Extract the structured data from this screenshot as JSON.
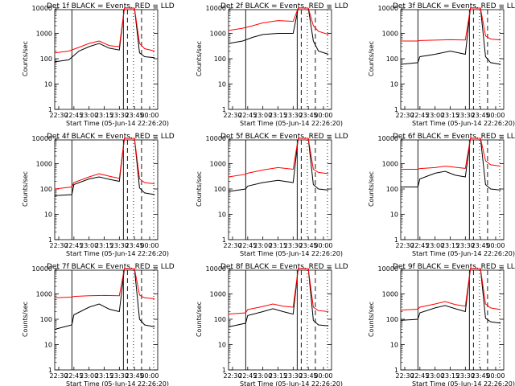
{
  "figure": {
    "ylabel": "Counts/sec",
    "xlabel_prefix": "Start Time",
    "start_time": "(05-Jun-14 22:26:20)",
    "x_ticks": [
      "22:30",
      "22:45",
      "23:00",
      "23:15",
      "23:30",
      "23:45",
      "00:00"
    ],
    "y_ticks": [
      "1",
      "10",
      "100",
      "1000",
      "10000"
    ],
    "colors": {
      "events": "#000000",
      "lld": "#ff0000"
    }
  },
  "chart_data": [
    {
      "type": "line",
      "title": "Det 1f BLACK = Events, RED = LLD",
      "xlabel": "Start Time (05-Jun-14 22:26:20)",
      "ylabel": "Counts/sec",
      "ylim": [
        1,
        10000
      ],
      "y_scale": "log",
      "x": [
        "22:30",
        "22:45",
        "23:00",
        "23:15",
        "23:30",
        "23:45",
        "00:00"
      ],
      "series": [
        {
          "name": "Events",
          "color": "#000000",
          "points": [
            [
              "22:26",
              75
            ],
            [
              "22:40",
              90
            ],
            [
              "22:50",
              200
            ],
            [
              "23:00",
              300
            ],
            [
              "23:10",
              400
            ],
            [
              "23:20",
              260
            ],
            [
              "23:30",
              220
            ],
            [
              "23:35",
              15000
            ],
            [
              "23:45",
              15000
            ],
            [
              "23:50",
              170
            ],
            [
              "23:55",
              120
            ],
            [
              "00:05",
              110
            ]
          ]
        },
        {
          "name": "LLD",
          "color": "#ff0000",
          "points": [
            [
              "22:26",
              170
            ],
            [
              "22:40",
              200
            ],
            [
              "22:50",
              280
            ],
            [
              "23:00",
              400
            ],
            [
              "23:10",
              500
            ],
            [
              "23:20",
              330
            ],
            [
              "23:30",
              300
            ],
            [
              "23:35",
              15000
            ],
            [
              "23:45",
              15000
            ],
            [
              "23:50",
              400
            ],
            [
              "23:55",
              250
            ],
            [
              "00:05",
              200
            ]
          ]
        }
      ]
    },
    {
      "type": "line",
      "title": "Det 2f BLACK = Events, RED = LLD",
      "xlabel": "Start Time (05-Jun-14 22:26:20)",
      "ylabel": "Counts/sec",
      "ylim": [
        1,
        10000
      ],
      "y_scale": "log",
      "series": [
        {
          "name": "Events",
          "color": "#000000",
          "points": [
            [
              "22:26",
              400
            ],
            [
              "22:40",
              500
            ],
            [
              "22:50",
              700
            ],
            [
              "23:00",
              900
            ],
            [
              "23:15",
              1000
            ],
            [
              "23:30",
              1000
            ],
            [
              "23:35",
              15000
            ],
            [
              "23:45",
              15000
            ],
            [
              "23:50",
              500
            ],
            [
              "23:55",
              200
            ],
            [
              "00:05",
              150
            ]
          ]
        },
        {
          "name": "LLD",
          "color": "#ff0000",
          "points": [
            [
              "22:26",
              1300
            ],
            [
              "22:40",
              1600
            ],
            [
              "22:50",
              2000
            ],
            [
              "23:00",
              2600
            ],
            [
              "23:15",
              3200
            ],
            [
              "23:30",
              3000
            ],
            [
              "23:35",
              15000
            ],
            [
              "23:45",
              15000
            ],
            [
              "23:50",
              2000
            ],
            [
              "23:55",
              1200
            ],
            [
              "00:05",
              900
            ]
          ]
        }
      ]
    },
    {
      "type": "line",
      "title": "Det 3f BLACK = Events, RED = LLD",
      "xlabel": "Start Time (05-Jun-14 22:26:20)",
      "ylabel": "Counts/sec",
      "ylim": [
        1,
        10000
      ],
      "y_scale": "log",
      "series": [
        {
          "name": "Events",
          "color": "#000000",
          "points": [
            [
              "22:26",
              60
            ],
            [
              "22:43",
              70
            ],
            [
              "22:45",
              120
            ],
            [
              "23:00",
              150
            ],
            [
              "23:15",
              200
            ],
            [
              "23:30",
              150
            ],
            [
              "23:35",
              15000
            ],
            [
              "23:45",
              15000
            ],
            [
              "23:50",
              120
            ],
            [
              "23:55",
              70
            ],
            [
              "00:05",
              60
            ]
          ]
        },
        {
          "name": "LLD",
          "color": "#ff0000",
          "points": [
            [
              "22:26",
              500
            ],
            [
              "22:43",
              500
            ],
            [
              "22:45",
              520
            ],
            [
              "23:00",
              540
            ],
            [
              "23:15",
              560
            ],
            [
              "23:30",
              550
            ],
            [
              "23:35",
              15000
            ],
            [
              "23:45",
              15000
            ],
            [
              "23:50",
              800
            ],
            [
              "23:55",
              600
            ],
            [
              "00:05",
              550
            ]
          ]
        }
      ]
    },
    {
      "type": "line",
      "title": "Det 4f BLACK = Events, RED = LLD",
      "xlabel": "Start Time (05-Jun-14 22:26:20)",
      "ylabel": "Counts/sec",
      "ylim": [
        1,
        10000
      ],
      "y_scale": "log",
      "series": [
        {
          "name": "Events",
          "color": "#000000",
          "points": [
            [
              "22:26",
              55
            ],
            [
              "22:43",
              60
            ],
            [
              "22:45",
              150
            ],
            [
              "23:00",
              250
            ],
            [
              "23:10",
              300
            ],
            [
              "23:20",
              240
            ],
            [
              "23:30",
              200
            ],
            [
              "23:35",
              15000
            ],
            [
              "23:45",
              15000
            ],
            [
              "23:50",
              110
            ],
            [
              "23:55",
              70
            ],
            [
              "00:05",
              60
            ]
          ]
        },
        {
          "name": "LLD",
          "color": "#ff0000",
          "points": [
            [
              "22:26",
              100
            ],
            [
              "22:43",
              120
            ],
            [
              "22:45",
              180
            ],
            [
              "23:00",
              300
            ],
            [
              "23:10",
              400
            ],
            [
              "23:20",
              320
            ],
            [
              "23:30",
              260
            ],
            [
              "23:35",
              15000
            ],
            [
              "23:45",
              15000
            ],
            [
              "23:50",
              250
            ],
            [
              "23:55",
              180
            ],
            [
              "00:05",
              160
            ]
          ]
        }
      ]
    },
    {
      "type": "line",
      "title": "Det 5f BLACK = Events, RED = LLD",
      "xlabel": "Start Time (05-Jun-14 22:26:20)",
      "ylabel": "Counts/sec",
      "ylim": [
        1,
        10000
      ],
      "y_scale": "log",
      "series": [
        {
          "name": "Events",
          "color": "#000000",
          "points": [
            [
              "22:26",
              80
            ],
            [
              "22:43",
              100
            ],
            [
              "22:45",
              130
            ],
            [
              "23:00",
              180
            ],
            [
              "23:15",
              220
            ],
            [
              "23:30",
              180
            ],
            [
              "23:35",
              15000
            ],
            [
              "23:45",
              15000
            ],
            [
              "23:50",
              150
            ],
            [
              "23:55",
              100
            ],
            [
              "00:05",
              90
            ]
          ]
        },
        {
          "name": "LLD",
          "color": "#ff0000",
          "points": [
            [
              "22:26",
              300
            ],
            [
              "22:43",
              380
            ],
            [
              "22:45",
              420
            ],
            [
              "23:00",
              560
            ],
            [
              "23:15",
              700
            ],
            [
              "23:30",
              600
            ],
            [
              "23:35",
              15000
            ],
            [
              "23:45",
              15000
            ],
            [
              "23:50",
              600
            ],
            [
              "23:55",
              450
            ],
            [
              "00:05",
              400
            ]
          ]
        }
      ]
    },
    {
      "type": "line",
      "title": "Det 6f BLACK = Events, RED = LLD",
      "xlabel": "Start Time (05-Jun-14 22:26:20)",
      "ylabel": "Counts/sec",
      "ylim": [
        1,
        10000
      ],
      "y_scale": "log",
      "series": [
        {
          "name": "Events",
          "color": "#000000",
          "points": [
            [
              "22:26",
              120
            ],
            [
              "22:43",
              120
            ],
            [
              "22:45",
              250
            ],
            [
              "23:00",
              420
            ],
            [
              "23:10",
              500
            ],
            [
              "23:20",
              350
            ],
            [
              "23:30",
              300
            ],
            [
              "23:35",
              15000
            ],
            [
              "23:45",
              15000
            ],
            [
              "23:50",
              150
            ],
            [
              "23:55",
              100
            ],
            [
              "00:05",
              90
            ]
          ]
        },
        {
          "name": "LLD",
          "color": "#ff0000",
          "points": [
            [
              "22:26",
              600
            ],
            [
              "22:43",
              600
            ],
            [
              "22:45",
              640
            ],
            [
              "23:00",
              700
            ],
            [
              "23:10",
              800
            ],
            [
              "23:20",
              720
            ],
            [
              "23:30",
              650
            ],
            [
              "23:35",
              15000
            ],
            [
              "23:45",
              15000
            ],
            [
              "23:50",
              1300
            ],
            [
              "23:55",
              900
            ],
            [
              "00:05",
              800
            ]
          ]
        }
      ]
    },
    {
      "type": "line",
      "title": "Det 7f BLACK = Events, RED = LLD",
      "xlabel": "Start Time (05-Jun-14 22:26:20)",
      "ylabel": "Counts/sec",
      "ylim": [
        1,
        10000
      ],
      "y_scale": "log",
      "series": [
        {
          "name": "Events",
          "color": "#000000",
          "points": [
            [
              "22:26",
              40
            ],
            [
              "22:43",
              60
            ],
            [
              "22:45",
              150
            ],
            [
              "23:00",
              300
            ],
            [
              "23:10",
              400
            ],
            [
              "23:20",
              250
            ],
            [
              "23:30",
              200
            ],
            [
              "23:35",
              15000
            ],
            [
              "23:45",
              15000
            ],
            [
              "23:50",
              100
            ],
            [
              "23:55",
              60
            ],
            [
              "00:05",
              50
            ]
          ]
        },
        {
          "name": "LLD",
          "color": "#ff0000",
          "points": [
            [
              "22:26",
              700
            ],
            [
              "22:43",
              750
            ],
            [
              "22:45",
              800
            ],
            [
              "23:00",
              850
            ],
            [
              "23:15",
              870
            ],
            [
              "23:30",
              850
            ],
            [
              "23:35",
              15000
            ],
            [
              "23:45",
              15000
            ],
            [
              "23:50",
              900
            ],
            [
              "23:55",
              700
            ],
            [
              "00:05",
              650
            ]
          ]
        }
      ]
    },
    {
      "type": "line",
      "title": "Det 8f BLACK = Events, RED = LLD",
      "xlabel": "Start Time (05-Jun-14 22:26:20)",
      "ylabel": "Counts/sec",
      "ylim": [
        1,
        10000
      ],
      "y_scale": "log",
      "series": [
        {
          "name": "Events",
          "color": "#000000",
          "points": [
            [
              "22:26",
              50
            ],
            [
              "22:43",
              70
            ],
            [
              "22:45",
              140
            ],
            [
              "23:00",
              200
            ],
            [
              "23:10",
              260
            ],
            [
              "23:20",
              200
            ],
            [
              "23:30",
              160
            ],
            [
              "23:35",
              15000
            ],
            [
              "23:45",
              15000
            ],
            [
              "23:50",
              90
            ],
            [
              "23:55",
              60
            ],
            [
              "00:05",
              55
            ]
          ]
        },
        {
          "name": "LLD",
          "color": "#ff0000",
          "points": [
            [
              "22:26",
              160
            ],
            [
              "22:43",
              180
            ],
            [
              "22:45",
              240
            ],
            [
              "23:00",
              320
            ],
            [
              "23:10",
              400
            ],
            [
              "23:20",
              330
            ],
            [
              "23:30",
              300
            ],
            [
              "23:35",
              15000
            ],
            [
              "23:45",
              15000
            ],
            [
              "23:50",
              300
            ],
            [
              "23:55",
              220
            ],
            [
              "00:05",
              200
            ]
          ]
        }
      ]
    },
    {
      "type": "line",
      "title": "Det 9f BLACK = Events, RED = LLD",
      "xlabel": "Start Time (05-Jun-14 22:26:20)",
      "ylabel": "Counts/sec",
      "ylim": [
        1,
        10000
      ],
      "y_scale": "log",
      "series": [
        {
          "name": "Events",
          "color": "#000000",
          "points": [
            [
              "22:26",
              90
            ],
            [
              "22:43",
              100
            ],
            [
              "22:45",
              180
            ],
            [
              "23:00",
              280
            ],
            [
              "23:10",
              350
            ],
            [
              "23:20",
              260
            ],
            [
              "23:30",
              200
            ],
            [
              "23:35",
              15000
            ],
            [
              "23:45",
              15000
            ],
            [
              "23:50",
              110
            ],
            [
              "23:55",
              80
            ],
            [
              "00:05",
              70
            ]
          ]
        },
        {
          "name": "LLD",
          "color": "#ff0000",
          "points": [
            [
              "22:26",
              230
            ],
            [
              "22:43",
              250
            ],
            [
              "22:45",
              300
            ],
            [
              "23:00",
              400
            ],
            [
              "23:10",
              500
            ],
            [
              "23:20",
              380
            ],
            [
              "23:30",
              330
            ],
            [
              "23:35",
              15000
            ],
            [
              "23:45",
              15000
            ],
            [
              "23:50",
              400
            ],
            [
              "23:55",
              280
            ],
            [
              "00:05",
              240
            ]
          ]
        }
      ]
    }
  ]
}
